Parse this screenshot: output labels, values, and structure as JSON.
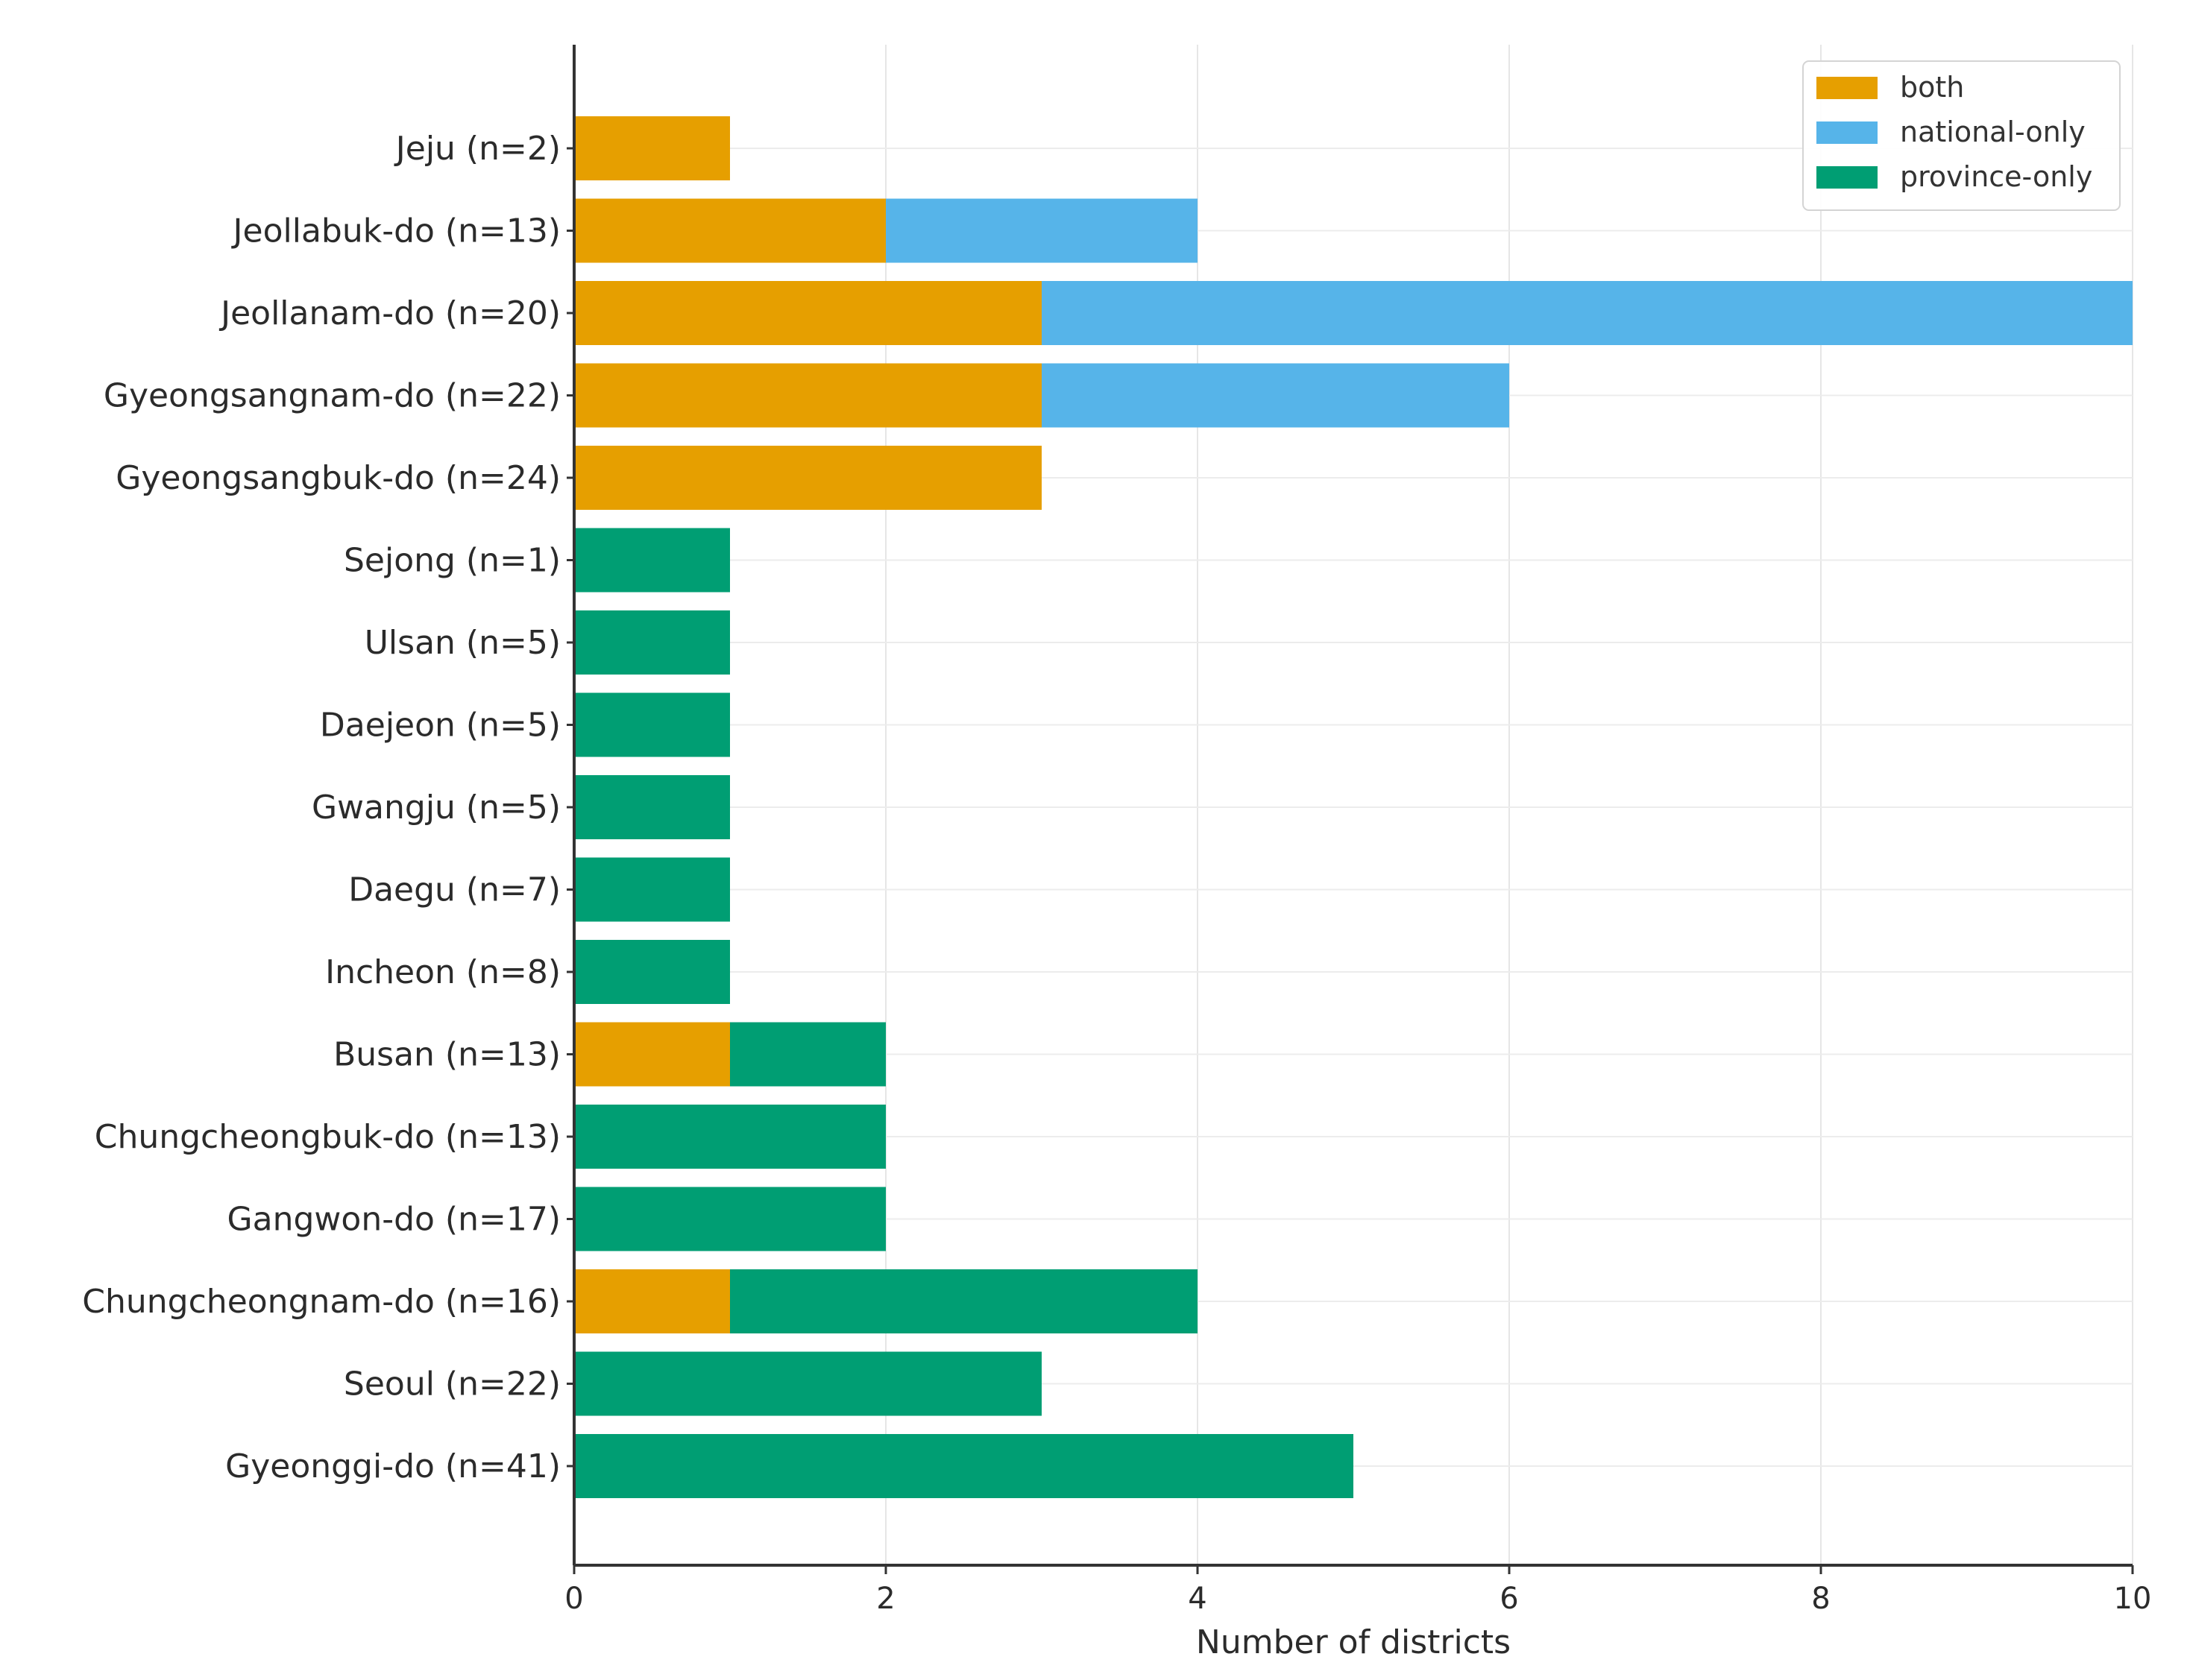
{
  "chart_data": {
    "type": "bar",
    "orientation": "horizontal",
    "stacked": true,
    "title": "",
    "xlabel": "Number of districts",
    "ylabel": "",
    "xlim": [
      0,
      10
    ],
    "xticks": [
      0,
      2,
      4,
      6,
      8,
      10
    ],
    "grid": true,
    "legend_position": "top-right",
    "categories": [
      "Jeju (n=2)",
      "Jeollabuk-do (n=13)",
      "Jeollanam-do (n=20)",
      "Gyeongsangnam-do (n=22)",
      "Gyeongsangbuk-do (n=24)",
      "Sejong (n=1)",
      "Ulsan (n=5)",
      "Daejeon (n=5)",
      "Gwangju (n=5)",
      "Daegu (n=7)",
      "Incheon (n=8)",
      "Busan (n=13)",
      "Chungcheongbuk-do (n=13)",
      "Gangwon-do (n=17)",
      "Chungcheongnam-do (n=16)",
      "Seoul (n=22)",
      "Gyeonggi-do (n=41)"
    ],
    "series": [
      {
        "name": "both",
        "color": "#E69F00",
        "values": [
          1,
          2,
          3,
          3,
          3,
          0,
          0,
          0,
          0,
          0,
          0,
          1,
          0,
          0,
          1,
          0,
          0
        ]
      },
      {
        "name": "national-only",
        "color": "#56B4E9",
        "values": [
          0,
          2,
          7,
          3,
          0,
          0,
          0,
          0,
          0,
          0,
          0,
          0,
          0,
          0,
          0,
          0,
          0
        ]
      },
      {
        "name": "province-only",
        "color": "#009E73",
        "values": [
          0,
          0,
          0,
          0,
          0,
          1,
          1,
          1,
          1,
          1,
          1,
          1,
          2,
          2,
          3,
          3,
          5
        ]
      }
    ]
  }
}
